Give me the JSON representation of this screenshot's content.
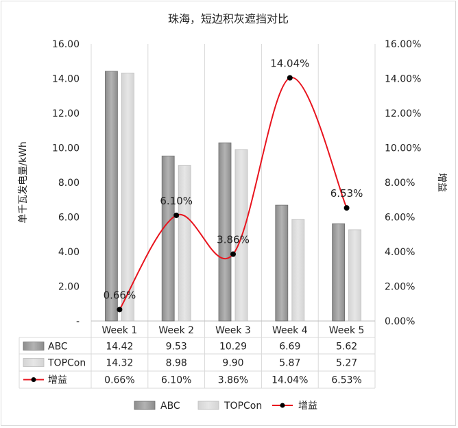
{
  "chart_data": {
    "type": "bar",
    "title": "珠海，短边积灰遮挡对比",
    "ylabel_left": "单千瓦发电量/kWh",
    "ylabel_right": "增益",
    "categories": [
      "Week 1",
      "Week 2",
      "Week 3",
      "Week 4",
      "Week 5"
    ],
    "left_axis": {
      "ylim": [
        0,
        16
      ],
      "ticks": [
        "-",
        "2.00",
        "4.00",
        "6.00",
        "8.00",
        "10.00",
        "12.00",
        "14.00",
        "16.00"
      ]
    },
    "right_axis": {
      "ylim": [
        0,
        16
      ],
      "ticks": [
        "0.00%",
        "2.00%",
        "4.00%",
        "6.00%",
        "8.00%",
        "10.00%",
        "12.00%",
        "14.00%",
        "16.00%"
      ]
    },
    "series": [
      {
        "name": "ABC",
        "kind": "bar",
        "color": "#8c8c8c",
        "values": [
          14.42,
          9.53,
          10.29,
          6.69,
          5.62
        ],
        "labels": [
          "14.42",
          "9.53",
          "10.29",
          "6.69",
          "5.62"
        ]
      },
      {
        "name": "TOPCon",
        "kind": "bar",
        "color": "#d4d4d4",
        "values": [
          14.32,
          8.98,
          9.9,
          5.87,
          5.27
        ],
        "labels": [
          "14.32",
          "8.98",
          "9.90",
          "5.87",
          "5.27"
        ]
      },
      {
        "name": "增益",
        "kind": "line",
        "axis": "right",
        "color": "#e8141e",
        "marker_color": "#000000",
        "values": [
          0.66,
          6.1,
          3.86,
          14.04,
          6.53
        ],
        "labels": [
          "0.66%",
          "6.10%",
          "3.86%",
          "14.04%",
          "6.53%"
        ]
      }
    ],
    "legend": "bottom",
    "data_table": true,
    "grid": "vertical"
  }
}
